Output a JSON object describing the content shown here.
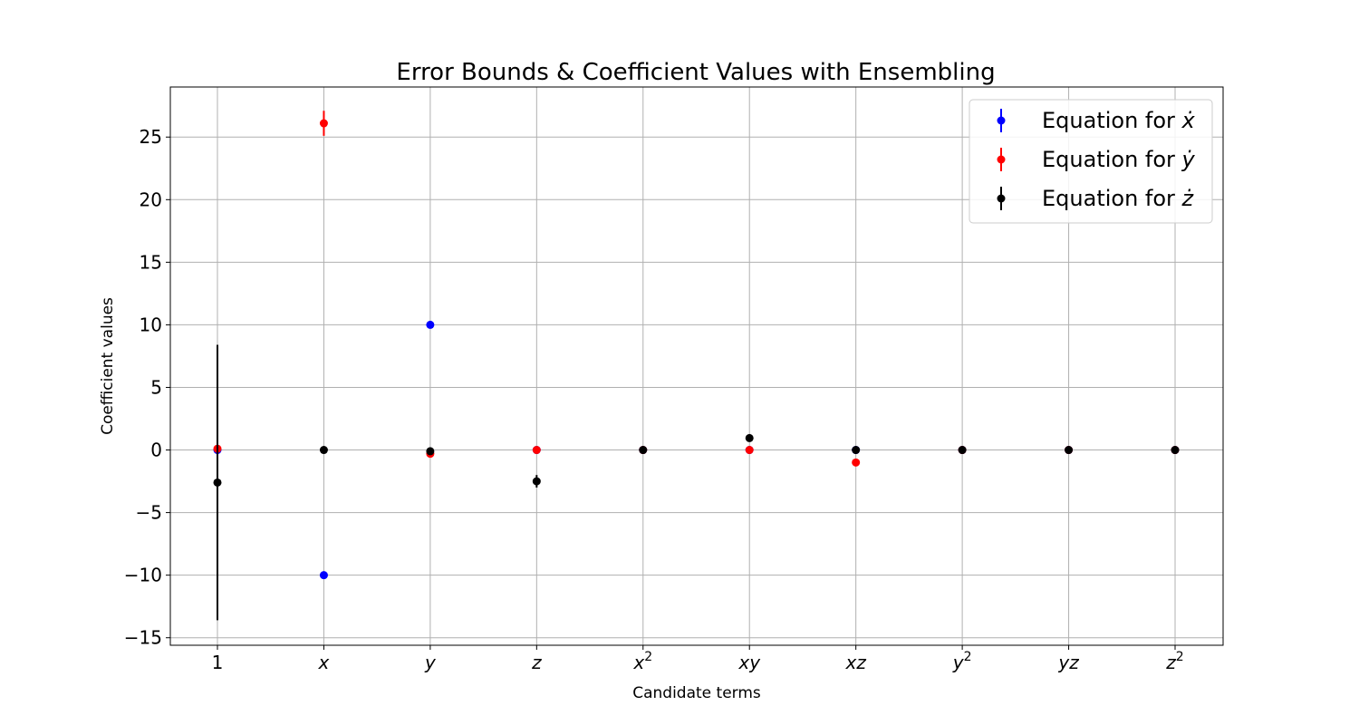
{
  "chart_data": {
    "type": "scatter",
    "title": "Error Bounds & Coefficient Values with Ensembling",
    "xlabel": "Candidate terms",
    "ylabel": "Coefficient values",
    "categories": [
      "1",
      "x",
      "y",
      "z",
      "x²",
      "xy",
      "xz",
      "y²",
      "yz",
      "z²"
    ],
    "category_parts": [
      {
        "base": "1",
        "sup": "",
        "italic": false
      },
      {
        "base": "x",
        "sup": "",
        "italic": true
      },
      {
        "base": "y",
        "sup": "",
        "italic": true
      },
      {
        "base": "z",
        "sup": "",
        "italic": true
      },
      {
        "base": "x",
        "sup": "2",
        "italic": true
      },
      {
        "base": "xy",
        "sup": "",
        "italic": true
      },
      {
        "base": "xz",
        "sup": "",
        "italic": true
      },
      {
        "base": "y",
        "sup": "2",
        "italic": true
      },
      {
        "base": "yz",
        "sup": "",
        "italic": true
      },
      {
        "base": "z",
        "sup": "2",
        "italic": true
      }
    ],
    "ylim": [
      -15.6,
      29.0
    ],
    "yticks": [
      -15,
      -10,
      -5,
      0,
      5,
      10,
      15,
      20,
      25
    ],
    "ytick_labels": [
      "−15",
      "−10",
      "−5",
      "0",
      "5",
      "10",
      "15",
      "20",
      "25"
    ],
    "grid": true,
    "legend_position": "top-right",
    "series": [
      {
        "name": "Equation for ẋ",
        "legend_prefix": "Equation for ",
        "legend_var": "x",
        "color": "#0000ff",
        "values": [
          0,
          -10,
          10,
          0,
          0,
          0,
          0,
          0,
          0,
          0
        ],
        "errors": [
          0,
          0,
          0,
          0,
          0,
          0,
          0,
          0,
          0,
          0
        ]
      },
      {
        "name": "Equation for ẏ",
        "legend_prefix": "Equation for ",
        "legend_var": "y",
        "color": "#ff0000",
        "values": [
          0.1,
          26.1,
          -0.3,
          0,
          0,
          0,
          -1.0,
          0,
          0,
          0
        ],
        "errors": [
          0,
          1.0,
          0,
          0,
          0,
          0,
          0,
          0,
          0,
          0
        ]
      },
      {
        "name": "Equation for ż",
        "legend_prefix": "Equation for ",
        "legend_var": "z",
        "color": "#000000",
        "values": [
          -2.6,
          0,
          -0.1,
          -2.5,
          0,
          0.95,
          0,
          0,
          0,
          0
        ],
        "errors": [
          11.0,
          0,
          0,
          0.5,
          0,
          0,
          0,
          0,
          0,
          0
        ]
      }
    ]
  }
}
